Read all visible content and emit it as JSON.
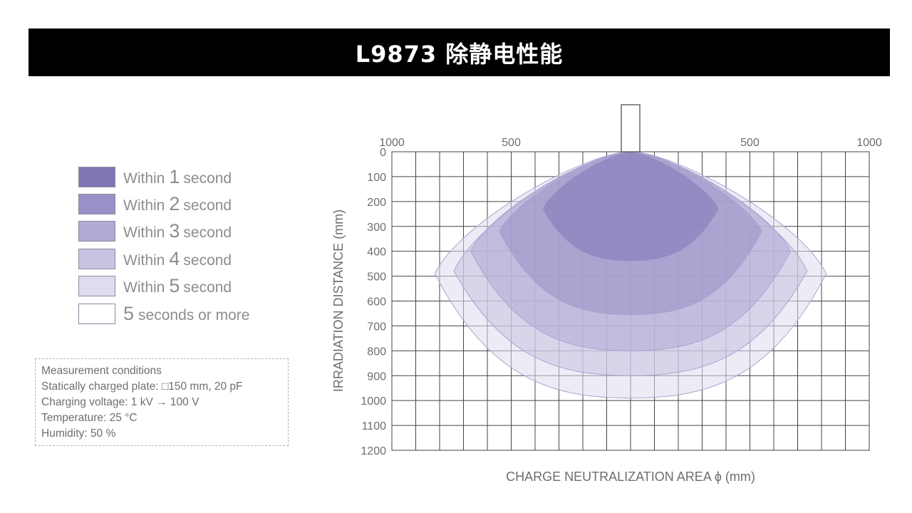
{
  "title": "L9873 除静电性能",
  "legend": [
    {
      "prefix": "Within",
      "number": "1",
      "suffix": "second",
      "color": "#7f76b6"
    },
    {
      "prefix": "Within",
      "number": "2",
      "suffix": "second",
      "color": "#9890c6"
    },
    {
      "prefix": "Within",
      "number": "3",
      "suffix": "second",
      "color": "#b0aad4"
    },
    {
      "prefix": "Within",
      "number": "4",
      "suffix": "second",
      "color": "#c7c3e1"
    },
    {
      "prefix": "Within",
      "number": "5",
      "suffix": "second",
      "color": "#dedcee"
    },
    {
      "prefix": "",
      "number": "5",
      "suffix": "seconds or more",
      "color": "#ffffff"
    }
  ],
  "conditions": {
    "heading": "Measurement conditions",
    "plate": "Statically charged plate: □150 mm, 20 pF",
    "voltage": "Charging voltage: 1 kV → 100 V",
    "temperature": "Temperature: 25 °C",
    "humidity": "Humidity: 50 %"
  },
  "chart_data": {
    "type": "area",
    "xlabel": "CHARGE NEUTRALIZATION AREA ϕ (mm)",
    "ylabel": "IRRADIATION DISTANCE (mm)",
    "x_ticks": [
      "1000",
      "500",
      "500",
      "1000"
    ],
    "x_tick_values": [
      -1000,
      -500,
      500,
      1000
    ],
    "xlim": [
      -1000,
      1000
    ],
    "ylim": [
      0,
      1200
    ],
    "y_inverted": true,
    "y_ticks": [
      "0",
      "100",
      "200",
      "300",
      "400",
      "500",
      "600",
      "700",
      "800",
      "900",
      "1000",
      "1100",
      "1200"
    ],
    "grid": true,
    "series": [
      {
        "name": "Within 5 second",
        "max_half_width": 820,
        "max_width_at_distance": 490,
        "max_distance": 990,
        "color": "#dedcee"
      },
      {
        "name": "Within 4 second",
        "max_half_width": 740,
        "max_width_at_distance": 480,
        "max_distance": 900,
        "color": "#c7c3e1"
      },
      {
        "name": "Within 3 second",
        "max_half_width": 670,
        "max_width_at_distance": 400,
        "max_distance": 800,
        "color": "#b0aad4"
      },
      {
        "name": "Within 2 second",
        "max_half_width": 550,
        "max_width_at_distance": 320,
        "max_distance": 655,
        "color": "#9890c6"
      },
      {
        "name": "Within 1 second",
        "max_half_width": 370,
        "max_width_at_distance": 230,
        "max_distance": 440,
        "color": "#7f76b6"
      }
    ]
  }
}
